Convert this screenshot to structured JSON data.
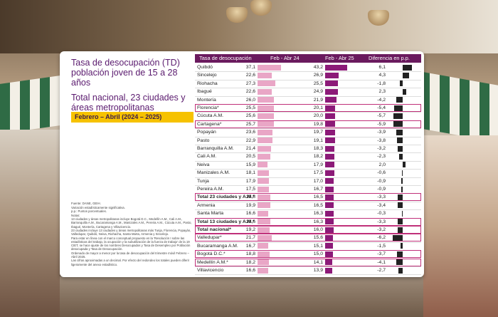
{
  "card": {
    "title": "Tasa de desocupación (TD) población joven de 15 a 28 años",
    "subtitle": "Total nacional, 23 ciudades y áreas metropolitanas",
    "period": "Febrero – Abril (2024 – 2025)",
    "notes": [
      "Fuente: DANE, GEIH.",
      "Variación estadísticamente significativa.",
      "p.p.: Puntos porcentuales.",
      "Notas:",
      "13 ciudades y áreas metropolitanas incluye Bogotá D.C., Medellín A.M., Cali A.M., Barranquilla A.M., Bucaramanga A.M., Manizales A.M., Pereira A.M., Cúcuta A.M., Pasto, Ibagué, Montería, Cartagena y Villavicencio.",
      "23 ciudades incluye 13 ciudades y áreas metropolitanas más Tunja, Florencia, Popayán, Valledupar, Quibdó, Neiva, Riohacha, Santa Marta, Armenia y Sincelejo.",
      "Para estar en línea con el marco conceptual propuesto en la 'Resolución I sobre las estadísticas del trabajo, la ocupación y la subutilización de la fuerza de trabajo' de la 19 CIET, se hace ajuste de los nombres Desocupados y Tasa de Desempleo por Población desocupada y Tasa de Desocupación.",
      "Ordenado de mayor a menor por la tasa de desocupación del trimestre móvil Febrero – Abril 2025.",
      "Las cifras aproximadas a un decimal. Por efecto del redondeo los totales pueden diferir ligeramente del anexo estadístico."
    ]
  },
  "chart_data": {
    "type": "table",
    "title": "Tasa de desocupación (TD) población joven de 15 a 28 años",
    "columns": [
      "Tasa de desocupación",
      "Feb - Abr 24",
      "Feb - Abr 25",
      "Diferencia en p.p."
    ],
    "rows": [
      {
        "name": "Quibdó",
        "v24": "37,1",
        "v25": "43,2",
        "diff": "6,1",
        "highlight": false,
        "bold": false
      },
      {
        "name": "Sincelejo",
        "v24": "22,6",
        "v25": "26,9",
        "diff": "4,3",
        "highlight": false,
        "bold": false
      },
      {
        "name": "Riohacha",
        "v24": "27,3",
        "v25": "25,5",
        "diff": "-1,8",
        "highlight": false,
        "bold": false
      },
      {
        "name": "Ibagué",
        "v24": "22,6",
        "v25": "24,9",
        "diff": "2,3",
        "highlight": false,
        "bold": false
      },
      {
        "name": "Montería",
        "v24": "26,0",
        "v25": "21,9",
        "diff": "-4,2",
        "highlight": false,
        "bold": false
      },
      {
        "name": "Florencia*",
        "v24": "25,5",
        "v25": "20,1",
        "diff": "-5,4",
        "highlight": true,
        "bold": false
      },
      {
        "name": "Cúcuta A.M.",
        "v24": "25,6",
        "v25": "20,0",
        "diff": "-5,7",
        "highlight": false,
        "bold": false
      },
      {
        "name": "Cartagena*",
        "v24": "25,7",
        "v25": "19,8",
        "diff": "-5,9",
        "highlight": true,
        "bold": false
      },
      {
        "name": "Popayán",
        "v24": "23,6",
        "v25": "19,7",
        "diff": "-3,9",
        "highlight": false,
        "bold": false
      },
      {
        "name": "Pasto",
        "v24": "22,9",
        "v25": "19,1",
        "diff": "-3,8",
        "highlight": false,
        "bold": false
      },
      {
        "name": "Barranquilla A.M.",
        "v24": "21,4",
        "v25": "18,3",
        "diff": "-3,2",
        "highlight": false,
        "bold": false
      },
      {
        "name": "Cali A.M.",
        "v24": "20,5",
        "v25": "18,2",
        "diff": "-2,3",
        "highlight": false,
        "bold": false
      },
      {
        "name": "Neiva",
        "v24": "15,9",
        "v25": "17,9",
        "diff": "2,0",
        "highlight": false,
        "bold": false
      },
      {
        "name": "Manizales A.M.",
        "v24": "18,1",
        "v25": "17,5",
        "diff": "-0,6",
        "highlight": false,
        "bold": false
      },
      {
        "name": "Tunja",
        "v24": "17,9",
        "v25": "17,0",
        "diff": "-0,9",
        "highlight": false,
        "bold": false
      },
      {
        "name": "Pereira A.M.",
        "v24": "17,5",
        "v25": "16,7",
        "diff": "-0,9",
        "highlight": false,
        "bold": false
      },
      {
        "name": "Total 23 ciudades y A.M.*",
        "v24": "19,8",
        "v25": "16,5",
        "diff": "-3,3",
        "highlight": true,
        "bold": true
      },
      {
        "name": "Armenia",
        "v24": "19,9",
        "v25": "16,5",
        "diff": "-3,4",
        "highlight": false,
        "bold": false
      },
      {
        "name": "Santa Marta",
        "v24": "16,6",
        "v25": "16,3",
        "diff": "-0,3",
        "highlight": false,
        "bold": false
      },
      {
        "name": "Total 13 ciudades y A.M.*",
        "v24": "19,6",
        "v25": "16,3",
        "diff": "-3,3",
        "highlight": true,
        "bold": true
      },
      {
        "name": "Total nacional*",
        "v24": "19,2",
        "v25": "16,0",
        "diff": "-3,2",
        "highlight": true,
        "bold": true
      },
      {
        "name": "Valledupar*",
        "v24": "21,7",
        "v25": "15,6",
        "diff": "-6,2",
        "highlight": true,
        "bold": false
      },
      {
        "name": "Bucaramanga A.M.",
        "v24": "16,7",
        "v25": "15,1",
        "diff": "-1,5",
        "highlight": false,
        "bold": false
      },
      {
        "name": "Bogotá D.C.*",
        "v24": "18,8",
        "v25": "15,0",
        "diff": "-3,7",
        "highlight": true,
        "bold": false
      },
      {
        "name": "Medellín A.M.*",
        "v24": "18,2",
        "v25": "14,1",
        "diff": "-4,1",
        "highlight": true,
        "bold": false
      },
      {
        "name": "Villavicencio",
        "v24": "16,6",
        "v25": "13,9",
        "diff": "-2,7",
        "highlight": false,
        "bold": false
      }
    ],
    "colors": {
      "bar_2024": "#e9a6c6",
      "bar_2025": "#8c1a78",
      "bar_diff": "#222222",
      "header": "#6a1a5e",
      "period_badge": "#f6c200"
    }
  }
}
